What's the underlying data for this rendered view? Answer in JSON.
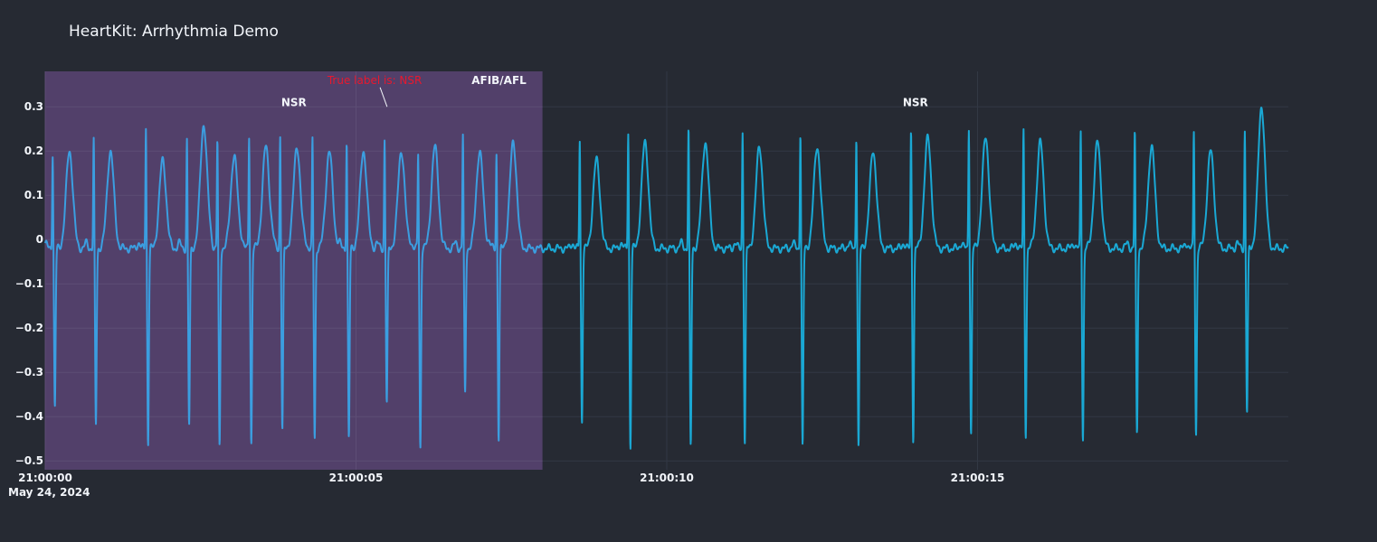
{
  "chart_data": {
    "type": "line",
    "title": "HeartKit: Arrhythmia Demo",
    "xlabel": "",
    "ylabel": "",
    "grid": true,
    "legend": false,
    "x_range": [
      "2024-05-24 21:00:00",
      "2024-05-24 21:00:20"
    ],
    "y_range": [
      -0.52,
      0.38
    ],
    "x_ticks": [
      {
        "time_s": 0,
        "label": "21:00:00",
        "sublabel": "May 24, 2024"
      },
      {
        "time_s": 5,
        "label": "21:00:05"
      },
      {
        "time_s": 10,
        "label": "21:00:10"
      },
      {
        "time_s": 15,
        "label": "21:00:15"
      }
    ],
    "y_ticks": [
      {
        "value": 0.3,
        "label": "0.3"
      },
      {
        "value": 0.2,
        "label": "0.2"
      },
      {
        "value": 0.1,
        "label": "0.1"
      },
      {
        "value": 0,
        "label": "0"
      },
      {
        "value": -0.1,
        "label": "−0.1"
      },
      {
        "value": -0.2,
        "label": "−0.2"
      },
      {
        "value": -0.3,
        "label": "−0.3"
      },
      {
        "value": -0.4,
        "label": "−0.4"
      },
      {
        "value": -0.5,
        "label": "−0.5"
      }
    ],
    "highlight_region": {
      "start_s": 0,
      "end_s": 8.0,
      "color": "#52406a"
    },
    "series": [
      {
        "color_highlighted": "#3b9ee0",
        "color": "#1aa8d4",
        "beat_times_s": [
          0.12,
          0.78,
          1.62,
          2.28,
          2.77,
          3.28,
          3.78,
          4.3,
          4.85,
          5.46,
          6.0,
          6.72,
          7.26,
          8.6,
          9.38,
          10.35,
          11.22,
          12.15,
          13.05,
          13.93,
          14.86,
          15.74,
          16.66,
          17.53,
          18.48,
          19.3
        ],
        "r_peaks": [
          0.2,
          0.23,
          0.26,
          0.23,
          0.23,
          0.24,
          0.24,
          0.23,
          0.23,
          0.23,
          0.2,
          0.24,
          0.2,
          0.23,
          0.25,
          0.26,
          0.25,
          0.25,
          0.24,
          0.25,
          0.26,
          0.25,
          0.25,
          0.25,
          0.25,
          0.25
        ],
        "s_troughs": [
          -0.38,
          -0.42,
          -0.46,
          -0.42,
          -0.47,
          -0.46,
          -0.43,
          -0.45,
          -0.45,
          -0.37,
          -0.47,
          -0.35,
          -0.45,
          -0.41,
          -0.47,
          -0.47,
          -0.46,
          -0.47,
          -0.47,
          -0.45,
          -0.44,
          -0.44,
          -0.45,
          -0.44,
          -0.44,
          -0.39
        ],
        "t_peaks": [
          0.2,
          0.2,
          0.18,
          0.26,
          0.19,
          0.21,
          0.21,
          0.2,
          0.2,
          0.2,
          0.21,
          0.2,
          0.22,
          0.18,
          0.22,
          0.22,
          0.21,
          0.21,
          0.2,
          0.23,
          0.23,
          0.22,
          0.22,
          0.21,
          0.2,
          0.3
        ]
      }
    ],
    "annotations": [
      {
        "text": "NSR",
        "time_s": 4.0,
        "y": 0.31,
        "style": "white"
      },
      {
        "text": "AFIB/AFL",
        "time_s": 7.3,
        "y": 0.36,
        "style": "white"
      },
      {
        "text": "True label is: NSR",
        "time_s": 5.3,
        "y": 0.36,
        "style": "red",
        "arrow_to_s": 5.5,
        "arrow_to_y": 0.3
      },
      {
        "text": "NSR",
        "time_s": 14.0,
        "y": 0.31,
        "style": "white"
      }
    ]
  }
}
